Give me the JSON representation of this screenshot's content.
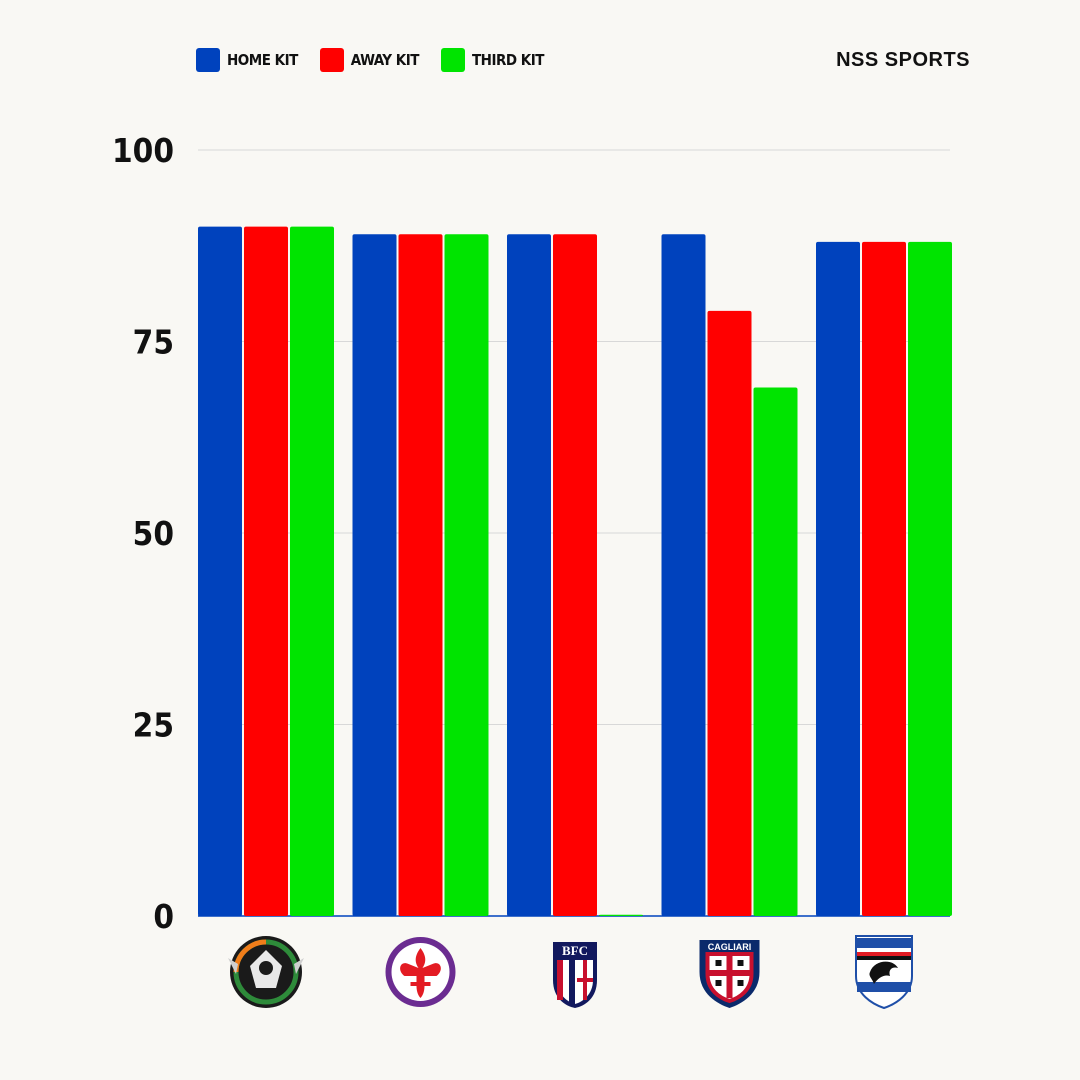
{
  "legend": {
    "home": "HOME KIT",
    "away": "AWAY KIT",
    "third": "THIRD KIT"
  },
  "brand": {
    "text": "NSS SPORTS",
    "icon": "nss-logo-icon"
  },
  "colors": {
    "home": "#0042bd",
    "away": "#ff0000",
    "third": "#00e400",
    "grid": "#d8d8d8",
    "background": "#f9f8f4"
  },
  "chart_data": {
    "type": "bar",
    "categories": [
      "Venezia",
      "Fiorentina",
      "Bologna",
      "Cagliari",
      "Sampdoria"
    ],
    "category_icons": [
      "venezia-crest-icon",
      "fiorentina-crest-icon",
      "bologna-crest-icon",
      "cagliari-crest-icon",
      "sampdoria-crest-icon"
    ],
    "series": [
      {
        "name": "HOME KIT",
        "values": [
          90,
          89,
          89,
          89,
          88
        ]
      },
      {
        "name": "AWAY KIT",
        "values": [
          90,
          89,
          89,
          79,
          88
        ]
      },
      {
        "name": "THIRD KIT",
        "values": [
          90,
          89,
          0,
          69,
          88
        ]
      }
    ],
    "yticks": [
      0,
      25,
      50,
      75,
      100
    ],
    "ylim": [
      0,
      100
    ],
    "grid": true,
    "legend_position": "top-left",
    "title": "",
    "xlabel": "",
    "ylabel": ""
  }
}
